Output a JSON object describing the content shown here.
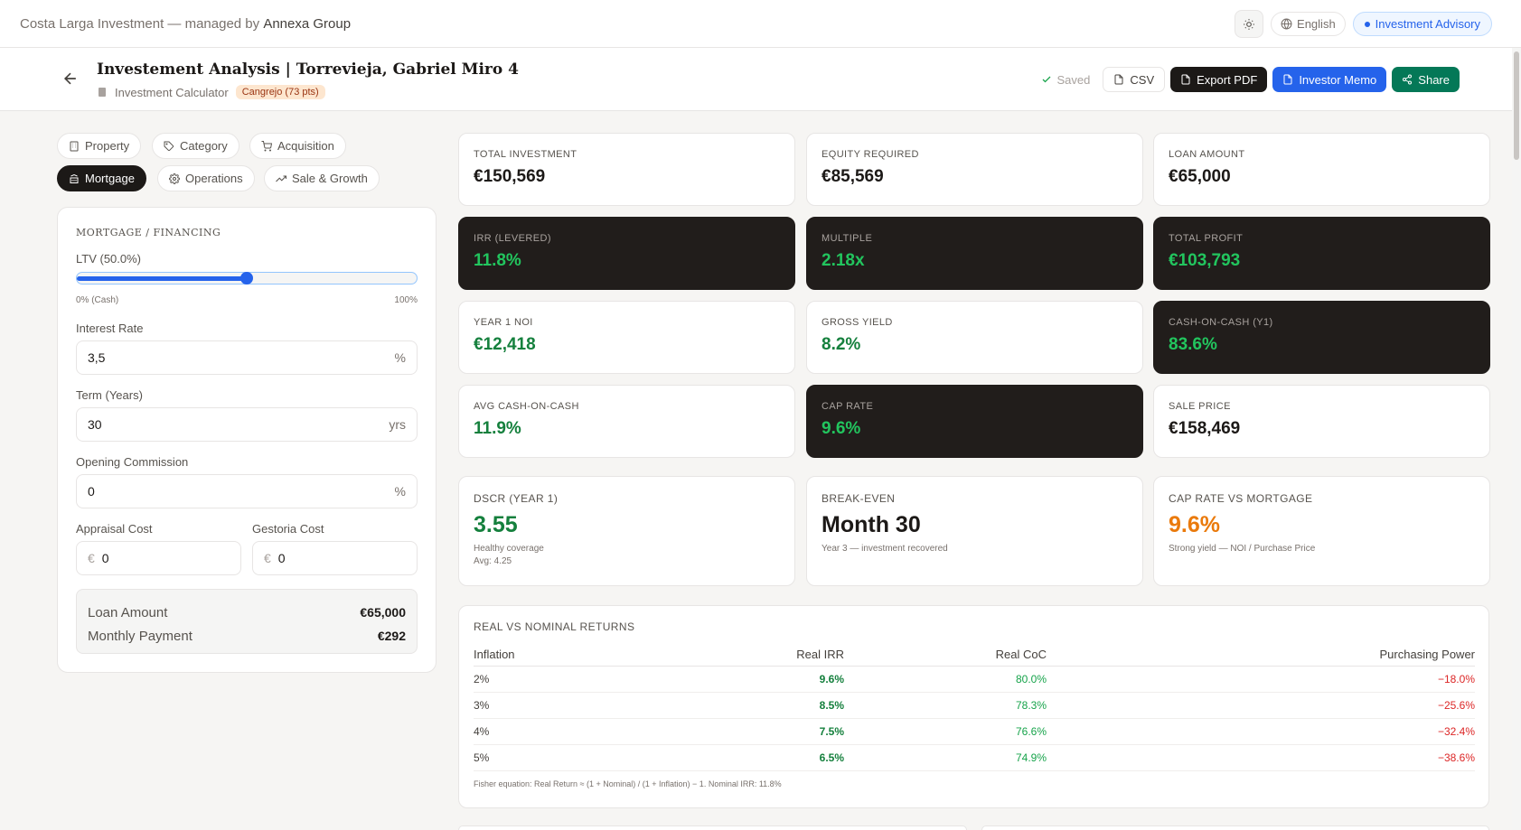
{
  "topbar": {
    "brand_prefix": "Costa Larga Investment — managed by",
    "brand_name": "Annexa Group",
    "language": "English",
    "advisory": "Investment Advisory"
  },
  "header": {
    "title": "Investement Analysis | Torrevieja, Gabriel Miro 4",
    "calculator_label": "Investment Calculator",
    "score_badge": "Cangrejo (73 pts)",
    "saved": "Saved",
    "csv": "CSV",
    "export_pdf": "Export PDF",
    "investor_memo": "Investor Memo",
    "share": "Share"
  },
  "tabs": [
    {
      "label": "Property",
      "icon": "building-icon",
      "active": false
    },
    {
      "label": "Category",
      "icon": "tag-icon",
      "active": false
    },
    {
      "label": "Acquisition",
      "icon": "cart-icon",
      "active": false
    },
    {
      "label": "Mortgage",
      "icon": "bank-icon",
      "active": true
    },
    {
      "label": "Operations",
      "icon": "gear-icon",
      "active": false
    },
    {
      "label": "Sale & Growth",
      "icon": "trending-up-icon",
      "active": false
    }
  ],
  "form": {
    "section_title": "MORTGAGE / FINANCING",
    "ltv_label": "LTV (50.0%)",
    "ltv_value": 0.5,
    "ltv_min": "0% (Cash)",
    "ltv_max": "100%",
    "interest_label": "Interest Rate",
    "interest_value": "3,5",
    "interest_suffix": "%",
    "term_label": "Term (Years)",
    "term_value": "30",
    "term_suffix": "yrs",
    "commission_label": "Opening Commission",
    "commission_value": "0",
    "commission_suffix": "%",
    "appraisal_label": "Appraisal Cost",
    "appraisal_value": "0",
    "gestoria_label": "Gestoria Cost",
    "gestoria_value": "0",
    "currency": "€",
    "loan_amount_label": "Loan Amount",
    "loan_amount_value": "€65,000",
    "monthly_payment_label": "Monthly Payment",
    "monthly_payment_value": "€292"
  },
  "metrics": [
    {
      "label": "TOTAL INVESTMENT",
      "value": "€150,569",
      "style": "light"
    },
    {
      "label": "EQUITY REQUIRED",
      "value": "€85,569",
      "style": "light"
    },
    {
      "label": "LOAN AMOUNT",
      "value": "€65,000",
      "style": "light"
    },
    {
      "label": "IRR (LEVERED)",
      "value": "11.8%",
      "style": "dark"
    },
    {
      "label": "MULTIPLE",
      "value": "2.18x",
      "style": "dark"
    },
    {
      "label": "TOTAL PROFIT",
      "value": "€103,793",
      "style": "dark"
    },
    {
      "label": "YEAR 1 NOI",
      "value": "€12,418",
      "style": "green"
    },
    {
      "label": "GROSS YIELD",
      "value": "8.2%",
      "style": "green"
    },
    {
      "label": "CASH-ON-CASH (Y1)",
      "value": "83.6%",
      "style": "dark"
    },
    {
      "label": "AVG CASH-ON-CASH",
      "value": "11.9%",
      "style": "green"
    },
    {
      "label": "CAP RATE",
      "value": "9.6%",
      "style": "dark"
    },
    {
      "label": "SALE PRICE",
      "value": "€158,469",
      "style": "light"
    }
  ],
  "big_metrics": [
    {
      "label": "DSCR (YEAR 1)",
      "value": "3.55",
      "color": "#15803d",
      "note1": "Healthy coverage",
      "note2": "Avg: 4.25"
    },
    {
      "label": "BREAK-EVEN",
      "value": "Month 30",
      "color": "#1c1917",
      "note1": "Year 3 — investment recovered",
      "note2": ""
    },
    {
      "label": "CAP RATE VS MORTGAGE",
      "value": "9.6%",
      "color": "#ea7a0c",
      "note1": "Strong yield — NOI / Purchase Price",
      "note2": ""
    }
  ],
  "returns_table": {
    "title": "REAL VS NOMINAL RETURNS",
    "headers": [
      "Inflation",
      "Real IRR",
      "Real CoC",
      "Purchasing Power"
    ],
    "rows": [
      [
        "2%",
        "9.6%",
        "80.0%",
        "−18.0%"
      ],
      [
        "3%",
        "8.5%",
        "78.3%",
        "−25.6%"
      ],
      [
        "4%",
        "7.5%",
        "76.6%",
        "−32.4%"
      ],
      [
        "5%",
        "6.5%",
        "74.9%",
        "−38.6%"
      ]
    ],
    "footnote": "Fisher equation: Real Return ≈ (1 + Nominal) / (1 + Inflation) − 1. Nominal IRR: 11.8%"
  }
}
